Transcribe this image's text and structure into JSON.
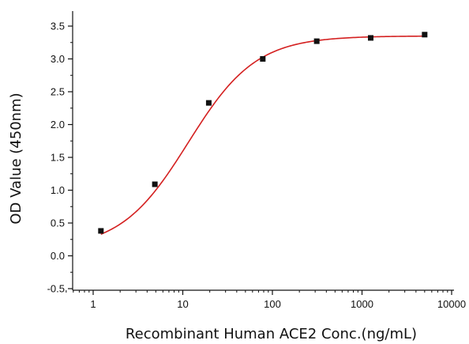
{
  "chart_data": {
    "type": "scatter",
    "title": "",
    "xlabel": "Recombinant Human ACE2 Conc.(ng/mL)",
    "ylabel": "OD Value (450nm)",
    "x_scale": "log",
    "xlim": [
      0.5,
      10000
    ],
    "ylim": [
      -0.5,
      3.6
    ],
    "x_ticks": [
      {
        "value": 1,
        "label": "1"
      },
      {
        "value": 10,
        "label": "10"
      },
      {
        "value": 100,
        "label": "100"
      },
      {
        "value": 1000,
        "label": "1000"
      },
      {
        "value": 10000,
        "label": "10000"
      }
    ],
    "y_ticks": [
      {
        "value": -0.5,
        "label": "-0.5"
      },
      {
        "value": 0,
        "label": "0.0"
      },
      {
        "value": 0.5,
        "label": "0.5"
      },
      {
        "value": 1.0,
        "label": "1.0"
      },
      {
        "value": 1.5,
        "label": "1.5"
      },
      {
        "value": 2.0,
        "label": "2.0"
      },
      {
        "value": 2.5,
        "label": "2.5"
      },
      {
        "value": 3.0,
        "label": "3.0"
      },
      {
        "value": 3.5,
        "label": "3.5"
      }
    ],
    "grid": false,
    "legend": "none",
    "series": [
      {
        "kind": "points",
        "marker": "square",
        "color": "#111111",
        "x": [
          1.22,
          4.88,
          19.5,
          78.1,
          312.5,
          1250,
          5000
        ],
        "y": [
          0.38,
          1.09,
          2.33,
          3.0,
          3.27,
          3.32,
          3.37
        ]
      },
      {
        "kind": "fit",
        "color": "#d42020",
        "model": "4PL",
        "params": {
          "bottom": 0.1,
          "top": 3.35,
          "ec50": 11.5,
          "hill": 1.15
        },
        "x_range": [
          1.22,
          5000
        ]
      }
    ]
  }
}
